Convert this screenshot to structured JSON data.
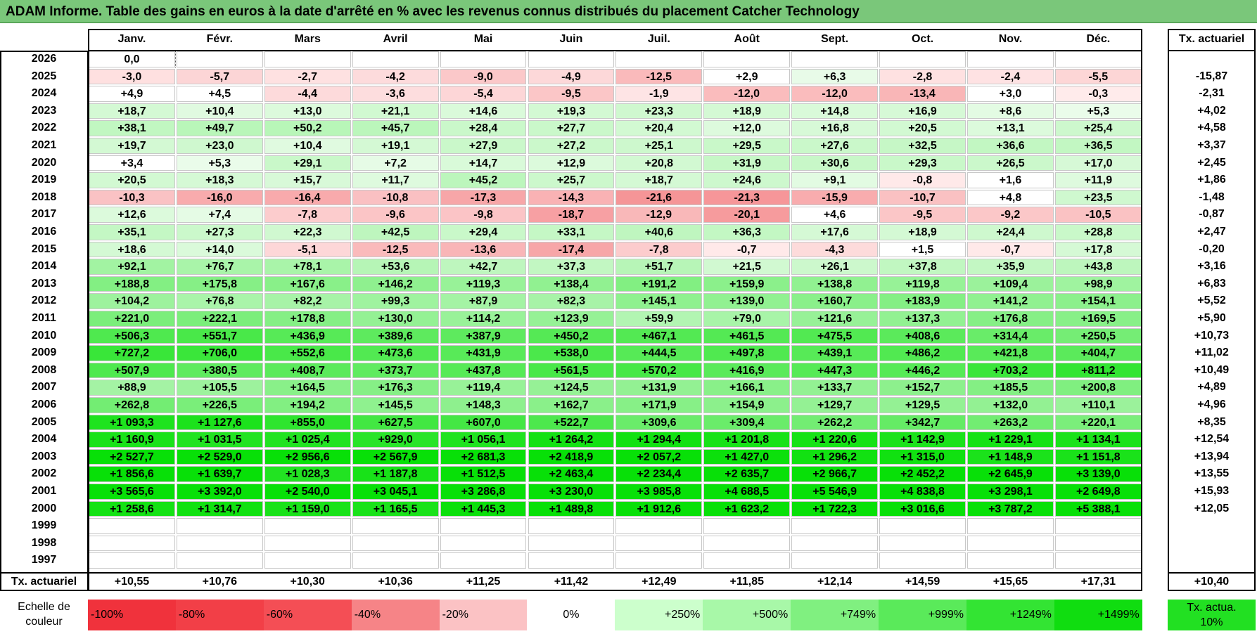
{
  "title": "ADAM Informe. Table des gains en euros à la date d'arrêté en % avec les revenus connus distribués du placement Catcher Technology",
  "chart_data": {
    "type": "table",
    "title": "ADAM Informe. Table des gains en euros à la date d'arrêté en % avec les revenus connus distribués du placement Catcher Technology",
    "columns": [
      "Janv.",
      "Févr.",
      "Mars",
      "Avril",
      "Mai",
      "Juin",
      "Juil.",
      "Août",
      "Sept.",
      "Oct.",
      "Nov.",
      "Déc."
    ],
    "annual_header": "Tx. actuariel",
    "rows": [
      {
        "year": "2026",
        "values": [
          "0,0",
          "",
          "",
          "",
          "",
          "",
          "",
          "",
          "",
          "",
          "",
          ""
        ],
        "annual": ""
      },
      {
        "year": "2025",
        "values": [
          "-3,0",
          "-5,7",
          "-2,7",
          "-4,2",
          "-9,0",
          "-4,9",
          "-12,5",
          "+2,9",
          "+6,3",
          "-2,8",
          "-2,4",
          "-5,5"
        ],
        "annual": "-15,87"
      },
      {
        "year": "2024",
        "values": [
          "+4,9",
          "+4,5",
          "-4,4",
          "-3,6",
          "-5,4",
          "-9,5",
          "-1,9",
          "-12,0",
          "-12,0",
          "-13,4",
          "+3,0",
          "-0,3"
        ],
        "annual": "-2,31"
      },
      {
        "year": "2023",
        "values": [
          "+18,7",
          "+10,4",
          "+13,0",
          "+21,1",
          "+14,6",
          "+19,3",
          "+23,3",
          "+18,9",
          "+14,8",
          "+16,9",
          "+8,6",
          "+5,3"
        ],
        "annual": "+4,02"
      },
      {
        "year": "2022",
        "values": [
          "+38,1",
          "+49,7",
          "+50,2",
          "+45,7",
          "+28,4",
          "+27,7",
          "+20,4",
          "+12,0",
          "+16,8",
          "+20,5",
          "+13,1",
          "+25,4"
        ],
        "annual": "+4,58"
      },
      {
        "year": "2021",
        "values": [
          "+19,7",
          "+23,0",
          "+10,4",
          "+19,1",
          "+27,9",
          "+27,2",
          "+25,1",
          "+29,5",
          "+27,6",
          "+32,5",
          "+36,6",
          "+36,5"
        ],
        "annual": "+3,37"
      },
      {
        "year": "2020",
        "values": [
          "+3,4",
          "+5,3",
          "+29,1",
          "+7,2",
          "+14,7",
          "+12,9",
          "+20,8",
          "+31,9",
          "+30,6",
          "+29,3",
          "+26,5",
          "+17,0"
        ],
        "annual": "+2,45"
      },
      {
        "year": "2019",
        "values": [
          "+20,5",
          "+18,3",
          "+15,7",
          "+11,7",
          "+45,2",
          "+25,7",
          "+18,7",
          "+24,6",
          "+9,1",
          "-0,8",
          "+1,6",
          "+11,9"
        ],
        "annual": "+1,86"
      },
      {
        "year": "2018",
        "values": [
          "-10,3",
          "-16,0",
          "-16,4",
          "-10,8",
          "-17,3",
          "-14,3",
          "-21,6",
          "-21,3",
          "-15,9",
          "-10,7",
          "+4,8",
          "+23,5"
        ],
        "annual": "-1,48"
      },
      {
        "year": "2017",
        "values": [
          "+12,6",
          "+7,4",
          "-7,8",
          "-9,6",
          "-9,8",
          "-18,7",
          "-12,9",
          "-20,1",
          "+4,6",
          "-9,5",
          "-9,2",
          "-10,5"
        ],
        "annual": "-0,87"
      },
      {
        "year": "2016",
        "values": [
          "+35,1",
          "+27,3",
          "+22,3",
          "+42,5",
          "+29,4",
          "+33,1",
          "+40,6",
          "+36,3",
          "+17,6",
          "+18,9",
          "+24,4",
          "+28,8"
        ],
        "annual": "+2,47"
      },
      {
        "year": "2015",
        "values": [
          "+18,6",
          "+14,0",
          "-5,1",
          "-12,5",
          "-13,6",
          "-17,4",
          "-7,8",
          "-0,7",
          "-4,3",
          "+1,5",
          "-0,7",
          "+17,8"
        ],
        "annual": "-0,20"
      },
      {
        "year": "2014",
        "values": [
          "+92,1",
          "+76,7",
          "+78,1",
          "+53,6",
          "+42,7",
          "+37,3",
          "+51,7",
          "+21,5",
          "+26,1",
          "+37,8",
          "+35,9",
          "+43,8"
        ],
        "annual": "+3,16"
      },
      {
        "year": "2013",
        "values": [
          "+188,8",
          "+175,8",
          "+167,6",
          "+146,2",
          "+119,3",
          "+138,4",
          "+191,2",
          "+159,9",
          "+138,8",
          "+119,8",
          "+109,4",
          "+98,9"
        ],
        "annual": "+6,83"
      },
      {
        "year": "2012",
        "values": [
          "+104,2",
          "+76,8",
          "+82,2",
          "+99,3",
          "+87,9",
          "+82,3",
          "+145,1",
          "+139,0",
          "+160,7",
          "+183,9",
          "+141,2",
          "+154,1"
        ],
        "annual": "+5,52"
      },
      {
        "year": "2011",
        "values": [
          "+221,0",
          "+222,1",
          "+178,8",
          "+130,0",
          "+114,2",
          "+123,9",
          "+59,9",
          "+79,0",
          "+121,6",
          "+137,3",
          "+176,8",
          "+169,5"
        ],
        "annual": "+5,90"
      },
      {
        "year": "2010",
        "values": [
          "+506,3",
          "+551,7",
          "+436,9",
          "+389,6",
          "+387,9",
          "+450,2",
          "+467,1",
          "+461,5",
          "+475,5",
          "+408,6",
          "+314,4",
          "+250,5"
        ],
        "annual": "+10,73"
      },
      {
        "year": "2009",
        "values": [
          "+727,2",
          "+706,0",
          "+552,6",
          "+473,6",
          "+431,9",
          "+538,0",
          "+444,5",
          "+497,8",
          "+439,1",
          "+486,2",
          "+421,8",
          "+404,7"
        ],
        "annual": "+11,02"
      },
      {
        "year": "2008",
        "values": [
          "+507,9",
          "+380,5",
          "+408,7",
          "+373,7",
          "+437,8",
          "+561,5",
          "+570,2",
          "+416,9",
          "+447,3",
          "+446,2",
          "+703,2",
          "+811,2"
        ],
        "annual": "+10,49"
      },
      {
        "year": "2007",
        "values": [
          "+88,9",
          "+105,5",
          "+164,5",
          "+176,3",
          "+119,4",
          "+124,5",
          "+131,9",
          "+166,1",
          "+133,7",
          "+152,7",
          "+185,5",
          "+200,8"
        ],
        "annual": "+4,89"
      },
      {
        "year": "2006",
        "values": [
          "+262,8",
          "+226,5",
          "+194,2",
          "+145,5",
          "+148,3",
          "+162,7",
          "+171,9",
          "+154,9",
          "+129,7",
          "+129,5",
          "+132,0",
          "+110,1"
        ],
        "annual": "+4,96"
      },
      {
        "year": "2005",
        "values": [
          "+1 093,3",
          "+1 127,6",
          "+855,0",
          "+627,5",
          "+607,0",
          "+522,7",
          "+309,6",
          "+309,4",
          "+262,2",
          "+342,7",
          "+263,2",
          "+220,1"
        ],
        "annual": "+8,35"
      },
      {
        "year": "2004",
        "values": [
          "+1 160,9",
          "+1 031,5",
          "+1 025,4",
          "+929,0",
          "+1 056,1",
          "+1 264,2",
          "+1 294,4",
          "+1 201,8",
          "+1 220,6",
          "+1 142,9",
          "+1 229,1",
          "+1 134,1"
        ],
        "annual": "+12,54"
      },
      {
        "year": "2003",
        "values": [
          "+2 527,7",
          "+2 529,0",
          "+2 956,6",
          "+2 567,9",
          "+2 681,3",
          "+2 418,9",
          "+2 057,2",
          "+1 427,0",
          "+1 296,2",
          "+1 315,0",
          "+1 148,9",
          "+1 151,8"
        ],
        "annual": "+13,94"
      },
      {
        "year": "2002",
        "values": [
          "+1 856,6",
          "+1 639,7",
          "+1 028,3",
          "+1 187,8",
          "+1 512,5",
          "+2 463,4",
          "+2 234,4",
          "+2 635,7",
          "+2 966,7",
          "+2 452,2",
          "+2 645,9",
          "+3 139,0"
        ],
        "annual": "+13,55"
      },
      {
        "year": "2001",
        "values": [
          "+3 565,6",
          "+3 392,0",
          "+2 540,0",
          "+3 045,1",
          "+3 286,8",
          "+3 230,0",
          "+3 985,8",
          "+4 688,5",
          "+5 546,9",
          "+4 838,8",
          "+3 298,1",
          "+2 649,8"
        ],
        "annual": "+15,93"
      },
      {
        "year": "2000",
        "values": [
          "+1 258,6",
          "+1 314,7",
          "+1 159,0",
          "+1 165,5",
          "+1 445,3",
          "+1 489,8",
          "+1 912,6",
          "+1 623,2",
          "+1 722,3",
          "+3 016,6",
          "+3 787,2",
          "+5 388,1"
        ],
        "annual": "+12,05"
      },
      {
        "year": "1999",
        "values": [
          "",
          "",
          "",
          "",
          "",
          "",
          "",
          "",
          "",
          "",
          "",
          ""
        ],
        "annual": ""
      },
      {
        "year": "1998",
        "values": [
          "",
          "",
          "",
          "",
          "",
          "",
          "",
          "",
          "",
          "",
          "",
          ""
        ],
        "annual": ""
      },
      {
        "year": "1997",
        "values": [
          "",
          "",
          "",
          "",
          "",
          "",
          "",
          "",
          "",
          "",
          "",
          ""
        ],
        "annual": ""
      }
    ],
    "footer": {
      "label": "Tx. actuariel",
      "values": [
        "+10,55",
        "+10,76",
        "+10,30",
        "+10,36",
        "+11,25",
        "+11,42",
        "+12,49",
        "+11,85",
        "+12,14",
        "+14,59",
        "+15,65",
        "+17,31"
      ],
      "annual": "+10,40"
    },
    "scale": {
      "label": "Echelle de couleur",
      "items": [
        {
          "text": "-100%",
          "color": "#f0323c",
          "align": "left"
        },
        {
          "text": "-80%",
          "color": "#f23f47",
          "align": "left"
        },
        {
          "text": "-60%",
          "color": "#f44e55",
          "align": "left"
        },
        {
          "text": "-40%",
          "color": "#f68487",
          "align": "left"
        },
        {
          "text": "-20%",
          "color": "#fbc2c4",
          "align": "left"
        },
        {
          "text": "0%",
          "color": "#ffffff",
          "align": "center"
        },
        {
          "text": "+250%",
          "color": "#ccffcc",
          "align": "right"
        },
        {
          "text": "+500%",
          "color": "#a8f8a8",
          "align": "right"
        },
        {
          "text": "+749%",
          "color": "#80f080",
          "align": "right"
        },
        {
          "text": "+999%",
          "color": "#5aea5a",
          "align": "right"
        },
        {
          "text": "+1249%",
          "color": "#33e433",
          "align": "right"
        },
        {
          "text": "+1499%",
          "color": "#10dd10",
          "align": "right"
        }
      ],
      "annual_label": "Tx. actua. 10%",
      "annual_color": "#22e022"
    }
  }
}
